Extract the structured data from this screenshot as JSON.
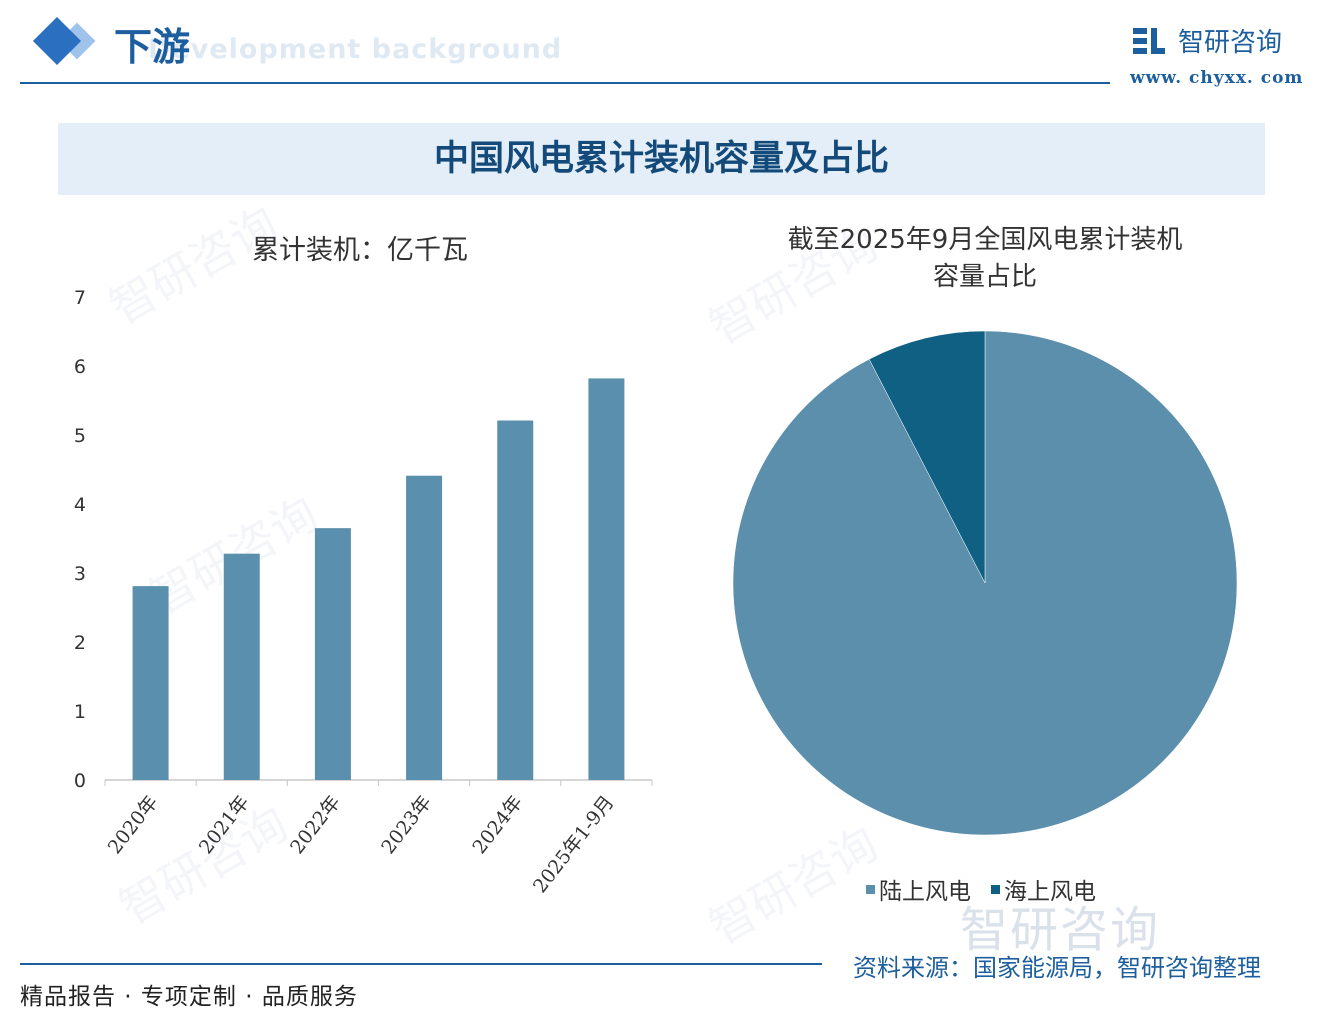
{
  "header": {
    "section_title": "下游",
    "section_subtitle": "Development background",
    "brand_name": "智研咨询",
    "brand_url": "www. chyxx. com"
  },
  "banner": {
    "title": "中国风电累计装机容量及占比"
  },
  "colors": {
    "primary": "#1d5f9e",
    "bar": "#5a8fad",
    "onshore": "#5b8fab",
    "offshore": "#0f6083",
    "banner_bg": "#e3eef8"
  },
  "chart_data": [
    {
      "type": "bar",
      "ylabel": "累计装机：亿千瓦",
      "categories": [
        "2020年",
        "2021年",
        "2022年",
        "2023年",
        "2024年",
        "2025年1-9月"
      ],
      "values": [
        2.81,
        3.28,
        3.65,
        4.41,
        5.21,
        5.82
      ],
      "ylim": [
        0,
        7
      ],
      "yticks": [
        "0",
        "1",
        "2",
        "3",
        "4",
        "5",
        "6",
        "7"
      ],
      "grid": false
    },
    {
      "type": "pie",
      "title": "截至2025年9月全国风电累计装机容量占比",
      "title_lines": [
        "截至2025年9月全国风电累计装机",
        "容量占比"
      ],
      "slices": [
        {
          "label": "陆上风电",
          "value": 92.4
        },
        {
          "label": "海上风电",
          "value": 7.6
        }
      ],
      "legend_position": "bottom"
    }
  ],
  "footer": {
    "left_text": "精品报告 · 专项定制 · 品质服务",
    "source": "资料来源：国家能源局，智研咨询整理"
  },
  "watermark": {
    "text": "智研咨询"
  }
}
